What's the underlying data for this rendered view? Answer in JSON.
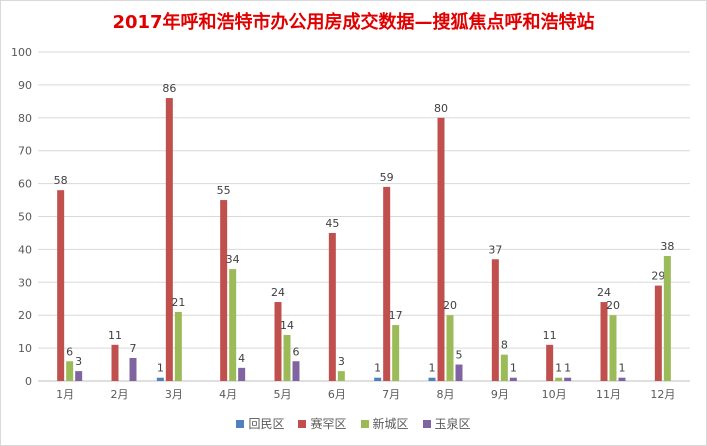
{
  "chart_data": {
    "type": "bar",
    "title": "2017年呼和浩特市办公用房成交数据—搜狐焦点呼和浩特站",
    "categories": [
      "1月",
      "2月",
      "3月",
      "4月",
      "5月",
      "6月",
      "7月",
      "8月",
      "9月",
      "10月",
      "11月",
      "12月"
    ],
    "series": [
      {
        "name": "回民区",
        "color": "#4f81bd",
        "values": [
          0,
          0,
          1,
          0,
          0,
          0,
          1,
          1,
          0,
          0,
          0,
          0
        ]
      },
      {
        "name": "赛罕区",
        "color": "#c0504d",
        "values": [
          58,
          11,
          86,
          55,
          24,
          45,
          59,
          80,
          37,
          11,
          24,
          29
        ]
      },
      {
        "name": "新城区",
        "color": "#9bbb59",
        "values": [
          6,
          0,
          21,
          34,
          14,
          3,
          17,
          20,
          8,
          1,
          20,
          38
        ]
      },
      {
        "name": "玉泉区",
        "color": "#8064a2",
        "values": [
          3,
          7,
          0,
          4,
          6,
          0,
          0,
          5,
          1,
          1,
          1,
          0
        ]
      }
    ],
    "ylim": [
      0,
      100
    ],
    "yticks": [
      0,
      10,
      20,
      30,
      40,
      50,
      60,
      70,
      80,
      90,
      100
    ],
    "grid": true,
    "legend": "bottom"
  }
}
